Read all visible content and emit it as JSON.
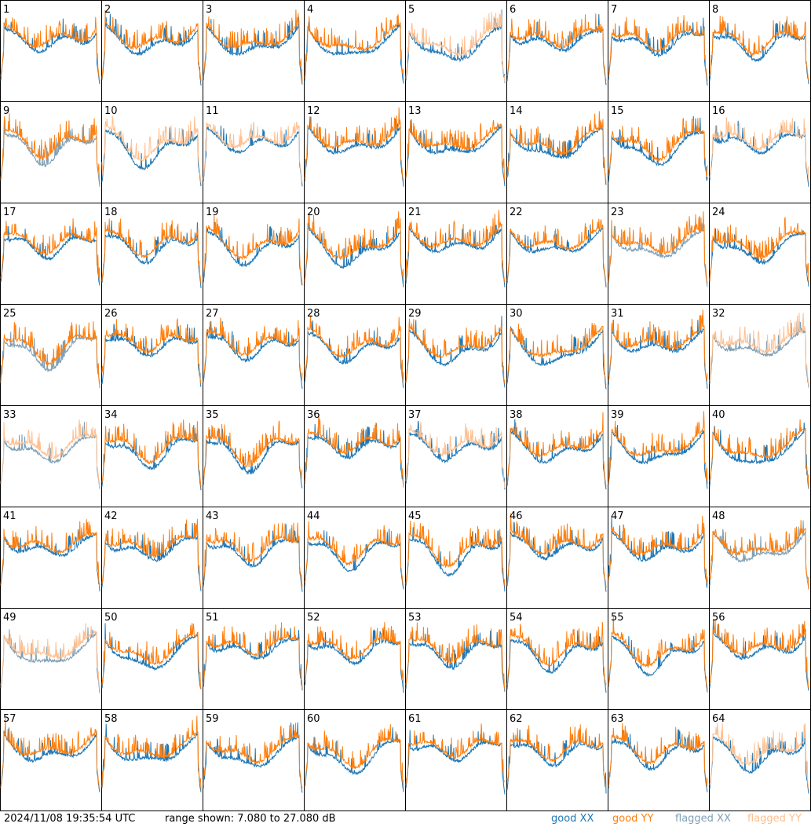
{
  "chart_data": {
    "type": "line",
    "layout": "8x8 small-multiples grid",
    "tiles": [
      {
        "id": "1",
        "xx": "good",
        "yy": "good"
      },
      {
        "id": "2",
        "xx": "good",
        "yy": "good"
      },
      {
        "id": "3",
        "xx": "good",
        "yy": "good"
      },
      {
        "id": "4",
        "xx": "good",
        "yy": "good"
      },
      {
        "id": "5",
        "xx": "good",
        "yy": "flagged"
      },
      {
        "id": "6",
        "xx": "good",
        "yy": "good"
      },
      {
        "id": "7",
        "xx": "good",
        "yy": "good"
      },
      {
        "id": "8",
        "xx": "good",
        "yy": "good"
      },
      {
        "id": "9",
        "xx": "flagged",
        "yy": "good"
      },
      {
        "id": "10",
        "xx": "good",
        "yy": "flagged"
      },
      {
        "id": "11",
        "xx": "good",
        "yy": "flagged"
      },
      {
        "id": "12",
        "xx": "good",
        "yy": "good"
      },
      {
        "id": "13",
        "xx": "good",
        "yy": "good"
      },
      {
        "id": "14",
        "xx": "good",
        "yy": "good"
      },
      {
        "id": "15",
        "xx": "good",
        "yy": "good"
      },
      {
        "id": "16",
        "xx": "good",
        "yy": "flagged"
      },
      {
        "id": "17",
        "xx": "good",
        "yy": "good"
      },
      {
        "id": "18",
        "xx": "good",
        "yy": "good"
      },
      {
        "id": "19",
        "xx": "good",
        "yy": "good"
      },
      {
        "id": "20",
        "xx": "good",
        "yy": "good"
      },
      {
        "id": "21",
        "xx": "good",
        "yy": "good"
      },
      {
        "id": "22",
        "xx": "good",
        "yy": "good"
      },
      {
        "id": "23",
        "xx": "flagged",
        "yy": "good"
      },
      {
        "id": "24",
        "xx": "good",
        "yy": "good"
      },
      {
        "id": "25",
        "xx": "flagged",
        "yy": "good"
      },
      {
        "id": "26",
        "xx": "good",
        "yy": "good"
      },
      {
        "id": "27",
        "xx": "good",
        "yy": "good"
      },
      {
        "id": "28",
        "xx": "good",
        "yy": "good"
      },
      {
        "id": "29",
        "xx": "good",
        "yy": "good"
      },
      {
        "id": "30",
        "xx": "good",
        "yy": "good"
      },
      {
        "id": "31",
        "xx": "good",
        "yy": "good"
      },
      {
        "id": "32",
        "xx": "flagged",
        "yy": "flagged"
      },
      {
        "id": "33",
        "xx": "flagged",
        "yy": "flagged"
      },
      {
        "id": "34",
        "xx": "good",
        "yy": "good"
      },
      {
        "id": "35",
        "xx": "good",
        "yy": "good"
      },
      {
        "id": "36",
        "xx": "good",
        "yy": "good"
      },
      {
        "id": "37",
        "xx": "good",
        "yy": "flagged"
      },
      {
        "id": "38",
        "xx": "good",
        "yy": "good"
      },
      {
        "id": "39",
        "xx": "good",
        "yy": "good"
      },
      {
        "id": "40",
        "xx": "good",
        "yy": "good"
      },
      {
        "id": "41",
        "xx": "good",
        "yy": "good"
      },
      {
        "id": "42",
        "xx": "good",
        "yy": "good"
      },
      {
        "id": "43",
        "xx": "good",
        "yy": "good"
      },
      {
        "id": "44",
        "xx": "good",
        "yy": "good"
      },
      {
        "id": "45",
        "xx": "good",
        "yy": "good"
      },
      {
        "id": "46",
        "xx": "good",
        "yy": "good"
      },
      {
        "id": "47",
        "xx": "good",
        "yy": "good"
      },
      {
        "id": "48",
        "xx": "flagged",
        "yy": "good"
      },
      {
        "id": "49",
        "xx": "flagged",
        "yy": "flagged"
      },
      {
        "id": "50",
        "xx": "good",
        "yy": "good"
      },
      {
        "id": "51",
        "xx": "good",
        "yy": "good"
      },
      {
        "id": "52",
        "xx": "good",
        "yy": "good"
      },
      {
        "id": "53",
        "xx": "good",
        "yy": "good"
      },
      {
        "id": "54",
        "xx": "good",
        "yy": "good"
      },
      {
        "id": "55",
        "xx": "good",
        "yy": "good"
      },
      {
        "id": "56",
        "xx": "good",
        "yy": "good"
      },
      {
        "id": "57",
        "xx": "good",
        "yy": "good"
      },
      {
        "id": "58",
        "xx": "good",
        "yy": "good"
      },
      {
        "id": "59",
        "xx": "good",
        "yy": "good"
      },
      {
        "id": "60",
        "xx": "good",
        "yy": "good"
      },
      {
        "id": "61",
        "xx": "good",
        "yy": "good"
      },
      {
        "id": "62",
        "xx": "good",
        "yy": "good"
      },
      {
        "id": "63",
        "xx": "good",
        "yy": "good"
      },
      {
        "id": "64",
        "xx": "good",
        "yy": "flagged"
      }
    ],
    "ylim": [
      7.08,
      27.08
    ],
    "grid": false
  },
  "footer": {
    "timestamp": "2024/11/08 19:35:54 UTC",
    "range_text": "range shown: 7.080 to 27.080 dB"
  },
  "legend": {
    "placement": "bottom-right",
    "items": [
      {
        "label": "good XX",
        "color": "#1f77b4"
      },
      {
        "label": "good YY",
        "color": "#ff7f0e"
      },
      {
        "label": "flagged XX",
        "color": "#7f9fb4"
      },
      {
        "label": "flagged YY",
        "color": "#ffbf8f"
      }
    ]
  },
  "colors": {
    "good_xx": "#1f77b4",
    "good_yy": "#ff7f0e",
    "flagged_xx": "#7f9fb4",
    "flagged_yy": "#ffbf8f"
  }
}
